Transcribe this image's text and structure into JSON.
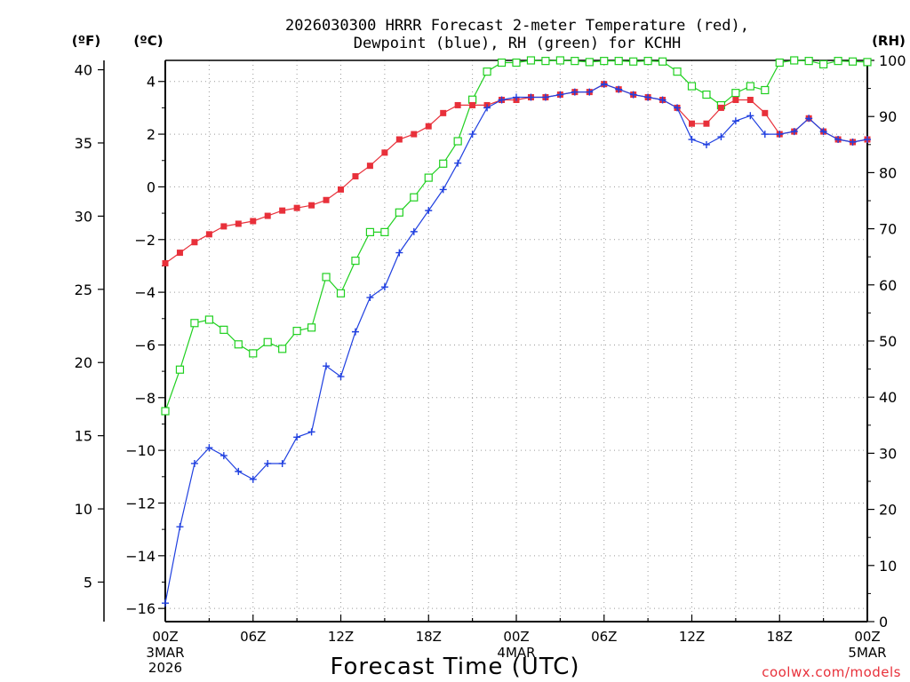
{
  "chart_data": {
    "type": "line",
    "title_lines": [
      "2026030300 HRRR Forecast 2-meter Temperature (red),",
      "Dewpoint (blue), RH (green) for KCHH"
    ],
    "unit_labels": {
      "fahrenheit": "(ºF)",
      "celsius": "(ºC)",
      "rh": "(RH)"
    },
    "xlabel": "Forecast Time (UTC)",
    "credit": "coolwx.com/models",
    "x_hours_range": [
      0,
      48
    ],
    "x_ticks": [
      {
        "hour": 0,
        "label": "00Z",
        "sub": [
          "3MAR",
          "2026"
        ]
      },
      {
        "hour": 6,
        "label": "06Z",
        "sub": []
      },
      {
        "hour": 12,
        "label": "12Z",
        "sub": []
      },
      {
        "hour": 18,
        "label": "18Z",
        "sub": []
      },
      {
        "hour": 24,
        "label": "00Z",
        "sub": [
          "4MAR"
        ]
      },
      {
        "hour": 30,
        "label": "06Z",
        "sub": []
      },
      {
        "hour": 36,
        "label": "12Z",
        "sub": []
      },
      {
        "hour": 42,
        "label": "18Z",
        "sub": []
      },
      {
        "hour": 48,
        "label": "00Z",
        "sub": [
          "5MAR"
        ]
      }
    ],
    "celsius_range": [
      -16.5,
      4.8
    ],
    "celsius_ticks": [
      "4",
      "2",
      "0",
      "−2",
      "−4",
      "−6",
      "−8",
      "−10",
      "−12",
      "−14",
      "−16"
    ],
    "fahrenheit_ticks": [
      "40",
      "35",
      "30",
      "25",
      "20",
      "15",
      "10",
      "5"
    ],
    "rh_range": [
      0,
      100
    ],
    "rh_ticks": [
      "100",
      "90",
      "80",
      "70",
      "60",
      "50",
      "40",
      "30",
      "20",
      "10",
      "0"
    ],
    "colors": {
      "temperature": "#e8303a",
      "dewpoint": "#2040e0",
      "rh": "#20d020",
      "axis": "#000000"
    },
    "series": [
      {
        "name": "Temperature",
        "units": "°C",
        "marker": "filled-square",
        "values": [
          -2.9,
          -2.5,
          -2.1,
          -1.8,
          -1.5,
          -1.4,
          -1.3,
          -1.1,
          -0.9,
          -0.8,
          -0.7,
          -0.5,
          -0.1,
          0.4,
          0.8,
          1.3,
          1.8,
          2.0,
          2.3,
          2.8,
          3.1,
          3.1,
          3.1,
          3.3,
          3.3,
          3.4,
          3.4,
          3.5,
          3.6,
          3.6,
          3.9,
          3.7,
          3.5,
          3.4,
          3.3,
          3.0,
          2.4,
          2.4,
          3.0,
          3.3,
          3.3,
          2.8,
          2.0,
          2.1,
          2.6,
          2.1,
          1.8,
          1.7,
          1.8
        ]
      },
      {
        "name": "Dewpoint",
        "units": "°C",
        "marker": "plus",
        "values": [
          -15.8,
          -12.9,
          -10.5,
          -9.9,
          -10.2,
          -10.8,
          -11.1,
          -10.5,
          -10.5,
          -9.5,
          -9.3,
          -6.8,
          -7.2,
          -5.5,
          -4.2,
          -3.8,
          -2.5,
          -1.7,
          -0.9,
          -0.1,
          0.9,
          2.0,
          3.0,
          3.3,
          3.4,
          3.4,
          3.4,
          3.5,
          3.6,
          3.6,
          3.9,
          3.7,
          3.5,
          3.4,
          3.3,
          3.0,
          1.8,
          1.6,
          1.9,
          2.5,
          2.7,
          2.0,
          2.0,
          2.1,
          2.6,
          2.1,
          1.8,
          1.7,
          1.8
        ]
      },
      {
        "name": "RH",
        "units": "%",
        "marker": "open-square",
        "values": [
          37.5,
          44.9,
          53.2,
          53.8,
          52.0,
          49.4,
          47.8,
          49.8,
          48.6,
          51.8,
          52.4,
          61.4,
          58.5,
          64.3,
          69.4,
          69.4,
          72.9,
          75.6,
          79.1,
          81.6,
          85.6,
          93.0,
          98.0,
          99.6,
          99.6,
          100,
          99.9,
          100,
          99.9,
          99.7,
          99.9,
          99.9,
          99.8,
          99.9,
          99.8,
          98.0,
          95.4,
          93.9,
          92.0,
          94.2,
          95.4,
          94.7,
          99.6,
          100,
          99.9,
          99.3,
          99.9,
          99.8,
          99.7
        ]
      }
    ]
  }
}
